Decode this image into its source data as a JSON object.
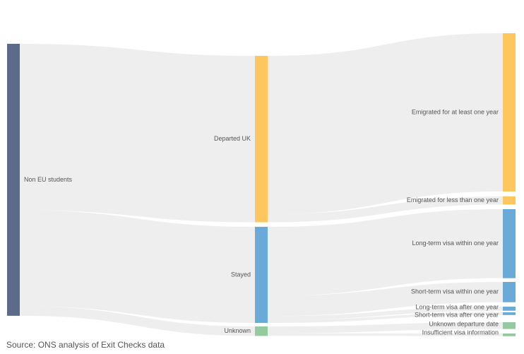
{
  "colors": {
    "source": "#5c6b8a",
    "departed": "#fdc65f",
    "stayed": "#6aaad9",
    "unknown": "#95c9a0",
    "link": "#ebebeb"
  },
  "nodes": [
    {
      "id": "non_eu",
      "label": "Non EU students",
      "color": "source"
    },
    {
      "id": "departed",
      "label": "Departed UK",
      "color": "departed"
    },
    {
      "id": "stayed",
      "label": "Stayed",
      "color": "stayed"
    },
    {
      "id": "unknown",
      "label": "Unknown",
      "color": "unknown"
    },
    {
      "id": "emig_long",
      "label": "Emigrated for at least one year",
      "color": "departed"
    },
    {
      "id": "emig_short",
      "label": "Emigrated for less than one year",
      "color": "departed"
    },
    {
      "id": "lt_within",
      "label": "Long-term visa within one year",
      "color": "stayed"
    },
    {
      "id": "st_within",
      "label": "Short-term visa within one year",
      "color": "stayed"
    },
    {
      "id": "lt_after",
      "label": "Long-term visa after one year",
      "color": "stayed"
    },
    {
      "id": "st_after",
      "label": "Short-term visa after one year",
      "color": "stayed"
    },
    {
      "id": "unk_date",
      "label": "Unknown departure date",
      "color": "unknown"
    },
    {
      "id": "insuff",
      "label": "Insufficient visa information",
      "color": "unknown"
    }
  ],
  "chart_data": {
    "type": "sankey",
    "links": [
      {
        "source": "non_eu",
        "target": "departed",
        "value": 61.5
      },
      {
        "source": "non_eu",
        "target": "stayed",
        "value": 35.5
      },
      {
        "source": "non_eu",
        "target": "unknown",
        "value": 3.5
      },
      {
        "source": "departed",
        "target": "emig_long",
        "value": 58.5
      },
      {
        "source": "departed",
        "target": "emig_short",
        "value": 3.0
      },
      {
        "source": "stayed",
        "target": "lt_within",
        "value": 25.5
      },
      {
        "source": "stayed",
        "target": "st_within",
        "value": 7.5
      },
      {
        "source": "stayed",
        "target": "lt_after",
        "value": 1.5
      },
      {
        "source": "stayed",
        "target": "st_after",
        "value": 1.0
      },
      {
        "source": "unknown",
        "target": "unk_date",
        "value": 2.5
      },
      {
        "source": "unknown",
        "target": "insuff",
        "value": 1.0
      }
    ]
  },
  "source_note": "Source: ONS analysis of Exit Checks data"
}
